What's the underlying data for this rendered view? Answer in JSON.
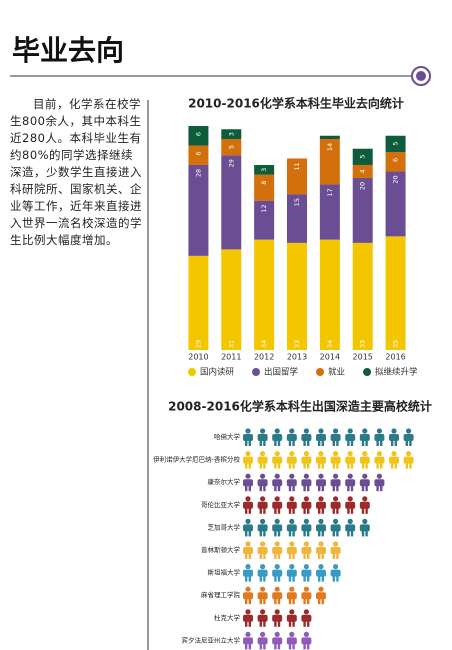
{
  "title": "毕业去向",
  "intro": "目前，化学系在校学生800余人，其中本科生近280人。本科毕业生有约80%的同学选择继续深造，少数学生直接进入科研院所、国家机关、企业等工作，近年来直接进入世界一流名校深造的学生比例大幅度增加。",
  "chart_data": [
    {
      "type": "stacked-bar",
      "title": "2010-2016化学系本科生毕业去向统计",
      "categories": [
        "2010",
        "2011",
        "2012",
        "2013",
        "2014",
        "2015",
        "2016"
      ],
      "series": [
        {
          "name": "国内读研",
          "color": "#f3c600",
          "values": [
            29,
            31,
            34,
            33,
            34,
            33,
            35
          ]
        },
        {
          "name": "出国留学",
          "color": "#6b4d94",
          "values": [
            28,
            29,
            12,
            15,
            17,
            20,
            20
          ]
        },
        {
          "name": "就业",
          "color": "#d4700c",
          "values": [
            6,
            5,
            8,
            11,
            14,
            4,
            6
          ]
        },
        {
          "name": "拟继续升学",
          "color": "#0e5c3b",
          "values": [
            6,
            3,
            3,
            null,
            1,
            5,
            5
          ]
        }
      ]
    },
    {
      "type": "pictogram",
      "title": "2008-2016化学系本科生出国深造主要高校统计",
      "categories": [
        "哈佛大学",
        "伊利诺伊大学厄巴纳-香槟分校",
        "康奈尔大学",
        "哥伦比亚大学",
        "芝加哥大学",
        "普林斯顿大学",
        "斯坦福大学",
        "麻省理工学院",
        "杜克大学",
        "宾夕法尼亚州立大学"
      ],
      "values": [
        12,
        12,
        10,
        9,
        9,
        7,
        7,
        6,
        5,
        5
      ],
      "colors": [
        "#2a7a8c",
        "#f0c419",
        "#6b4d94",
        "#9c2a2a",
        "#2a7a8c",
        "#f2b53a",
        "#3a9ac4",
        "#e07a1f",
        "#9c2a2a",
        "#8e5cb8"
      ]
    }
  ]
}
